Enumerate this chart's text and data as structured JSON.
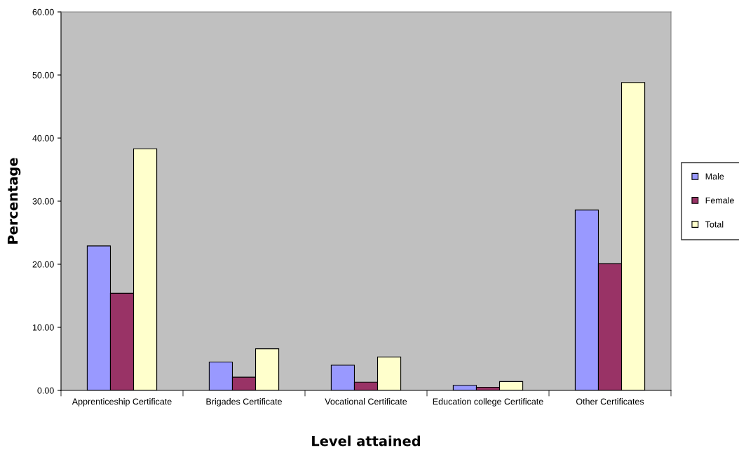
{
  "chart_data": {
    "type": "bar",
    "xlabel": "Level attained",
    "ylabel": "Percentage",
    "categories": [
      "Apprenticeship Certificate",
      "Brigades Certificate",
      "Vocational Certificate",
      "Education college Certificate",
      "Other Certificates"
    ],
    "series": [
      {
        "name": "Male",
        "color": "#9999ff",
        "values": [
          22.9,
          4.5,
          4.0,
          0.8,
          28.6
        ]
      },
      {
        "name": "Female",
        "color": "#993366",
        "values": [
          15.4,
          2.1,
          1.3,
          0.5,
          20.1
        ]
      },
      {
        "name": "Total",
        "color": "#ffffcc",
        "values": [
          38.3,
          6.6,
          5.3,
          1.4,
          48.8
        ]
      }
    ],
    "ylim": [
      0,
      60
    ],
    "yticks": [
      {
        "value": 0,
        "label": "0.00"
      },
      {
        "value": 10,
        "label": "10.00"
      },
      {
        "value": 20,
        "label": "20.00"
      },
      {
        "value": 30,
        "label": "30.00"
      },
      {
        "value": 40,
        "label": "40.00"
      },
      {
        "value": 50,
        "label": "50.00"
      },
      {
        "value": 60,
        "label": "60.00"
      }
    ],
    "grid": false,
    "legend": "right"
  }
}
